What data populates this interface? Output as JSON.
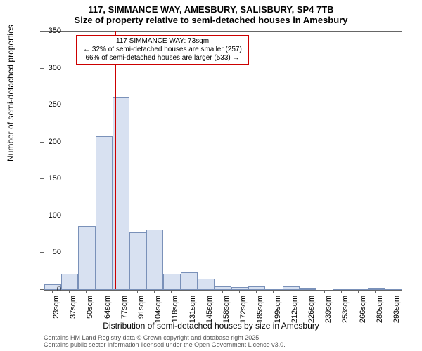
{
  "title_main": "117, SIMMANCE WAY, AMESBURY, SALISBURY, SP4 7TB",
  "title_sub": "Size of property relative to semi-detached houses in Amesbury",
  "ylabel": "Number of semi-detached properties",
  "xlabel": "Distribution of semi-detached houses by size in Amesbury",
  "chart": {
    "type": "histogram",
    "background_color": "#ffffff",
    "bar_fill": "#d8e1f1",
    "bar_stroke": "#7a91b9",
    "axis_color": "#666666",
    "refline_color": "#cc0000",
    "ylim": [
      0,
      350
    ],
    "ytick_step": 50,
    "yticks": [
      0,
      50,
      100,
      150,
      200,
      250,
      300,
      350
    ],
    "xticks": [
      "23sqm",
      "37sqm",
      "50sqm",
      "64sqm",
      "77sqm",
      "91sqm",
      "104sqm",
      "118sqm",
      "131sqm",
      "145sqm",
      "158sqm",
      "172sqm",
      "185sqm",
      "199sqm",
      "212sqm",
      "226sqm",
      "239sqm",
      "253sqm",
      "266sqm",
      "280sqm",
      "293sqm"
    ],
    "refline_x_value": 73,
    "x_start": 23,
    "x_step": 13.5,
    "values": [
      8,
      22,
      87,
      208,
      262,
      78,
      82,
      22,
      24,
      15,
      5,
      4,
      5,
      2,
      5,
      3,
      0,
      2,
      2,
      3,
      2
    ],
    "title_fontsize": 13,
    "label_fontsize": 12,
    "tick_fontsize": 11
  },
  "annotation": {
    "line1": "117 SIMMANCE WAY: 73sqm",
    "line2": "← 32% of semi-detached houses are smaller (257)",
    "line3": "66% of semi-detached houses are larger (533) →",
    "border_color": "#cc0000"
  },
  "footer1": "Contains HM Land Registry data © Crown copyright and database right 2025.",
  "footer2": "Contains public sector information licensed under the Open Government Licence v3.0."
}
